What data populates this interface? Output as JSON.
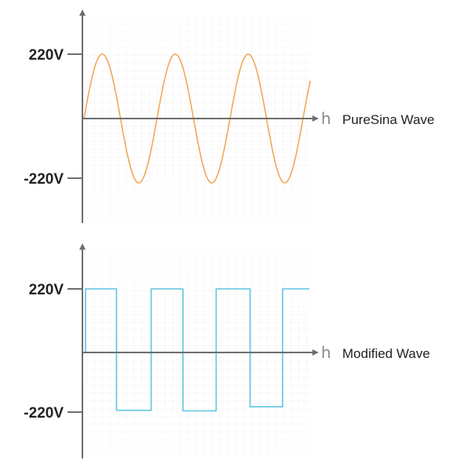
{
  "chart_data": [
    {
      "type": "line",
      "waveform": "sine",
      "caption": "PureSina Wave",
      "x_axis_label": "h",
      "y_tick_labels": [
        "220V",
        "-220V"
      ],
      "y_ticks": [
        220,
        -220
      ],
      "ylim": [
        -290,
        290
      ],
      "series": [
        {
          "color": "#f0a85a",
          "x": [
            0,
            0.25,
            0.5,
            0.75,
            1,
            1.25,
            1.5,
            1.75,
            2,
            2.25,
            2.5,
            2.75,
            3,
            3.1
          ],
          "y": [
            0,
            220,
            0,
            -220,
            0,
            220,
            0,
            -220,
            0,
            220,
            0,
            -220,
            0,
            220
          ]
        }
      ],
      "grid": true,
      "legend": "none"
    },
    {
      "type": "line",
      "waveform": "modified-square",
      "caption": "Modified Wave",
      "x_axis_label": "h",
      "y_tick_labels": [
        "220V",
        "-220V"
      ],
      "y_ticks": [
        220,
        -220
      ],
      "ylim": [
        -290,
        290
      ],
      "series": [
        {
          "color": "#5fc4e0",
          "x": [
            0,
            0.02,
            0.02,
            0.45,
            0.45,
            0.93,
            0.93,
            1.37,
            1.37,
            1.83,
            1.83,
            2.3,
            2.3,
            2.75,
            2.75,
            3.12
          ],
          "y": [
            0,
            0,
            220,
            220,
            -200,
            -200,
            220,
            220,
            -202,
            -202,
            220,
            220,
            -188,
            -188,
            220,
            220
          ]
        }
      ],
      "grid": true,
      "legend": "none"
    }
  ],
  "colors": {
    "axis": "#6e6e6e",
    "grid": "#e7e7e7",
    "sine": "#f0a85a",
    "square": "#5fc4e0"
  }
}
